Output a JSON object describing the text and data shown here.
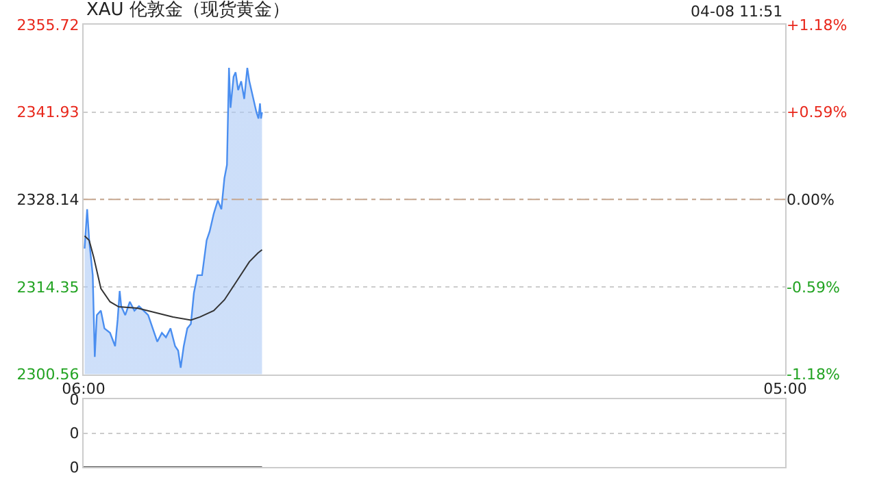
{
  "chart_data": [
    {
      "type": "area",
      "title": "XAU 伦敦金（现货黄金）",
      "annotations": [
        "04-08 11:51"
      ],
      "xlim": [
        "--04-08T06:00",
        "--04-09T05:00"
      ],
      "xticks": [
        {
          "value": "--04-08T06:00",
          "label": "06:00"
        },
        {
          "value": "--04-09T05:00",
          "label": "05:00"
        }
      ],
      "ylim": [
        2300.56,
        2355.72
      ],
      "yticks": [
        2300.56,
        2314.35,
        2328.14,
        2341.93,
        2355.72
      ],
      "y2lim": [
        -1.18,
        1.18
      ],
      "y2ticks": [
        {
          "value": -1.18,
          "label": "-1.18%"
        },
        {
          "value": -0.59,
          "label": "-0.59%"
        },
        {
          "value": 0,
          "label": "0.00%"
        },
        {
          "value": 0.59,
          "label": "+0.59%"
        },
        {
          "value": 1.18,
          "label": "+1.18%"
        }
      ],
      "grid": "y",
      "ref_lines": [
        {
          "axis": "y",
          "value": 2328.14,
          "color": "#c8a890",
          "line_style": "dashed"
        }
      ],
      "series": [
        {
          "type": "area",
          "color": "#4a8ef0",
          "x": [
            "--04-08T06:02",
            "--04-08T06:07",
            "--04-08T06:11",
            "--04-08T06:18",
            "--04-08T06:22",
            "--04-08T06:26",
            "--04-08T06:34",
            "--04-08T06:41",
            "--04-08T06:52",
            "--04-08T07:02",
            "--04-08T07:07",
            "--04-08T07:11",
            "--04-08T07:14",
            "--04-08T07:22",
            "--04-08T07:31",
            "--04-08T07:40",
            "--04-08T07:49",
            "--04-08T07:58",
            "--04-08T08:07",
            "--04-08T08:16",
            "--04-08T08:25",
            "--04-08T08:34",
            "--04-08T08:42",
            "--04-08T08:51",
            "--04-08T09:00",
            "--04-08T09:06",
            "--04-08T09:11",
            "--04-08T09:17",
            "--04-08T09:24",
            "--04-08T09:31",
            "--04-08T09:37",
            "--04-08T09:44",
            "--04-08T09:53",
            "--04-08T10:02",
            "--04-08T10:08",
            "--04-08T10:16",
            "--04-08T10:24",
            "--04-08T10:31",
            "--04-08T10:37",
            "--04-08T10:42",
            "--04-08T10:46",
            "--04-08T10:49",
            "--04-08T10:55",
            "--04-08T10:59",
            "--04-08T11:04",
            "--04-08T11:10",
            "--04-08T11:16",
            "--04-08T11:22",
            "--04-08T11:26",
            "--04-08T11:34",
            "--04-08T11:40",
            "--04-08T11:44",
            "--04-08T11:47",
            "--04-08T11:49",
            "--04-08T11:51"
          ],
          "values": [
            2320.4,
            2326.6,
            2321.7,
            2316.2,
            2303.3,
            2309.9,
            2310.6,
            2307.8,
            2307.1,
            2305.0,
            2309.2,
            2313.7,
            2311.3,
            2309.9,
            2312.0,
            2310.6,
            2311.3,
            2310.6,
            2309.9,
            2307.8,
            2305.7,
            2307.1,
            2306.4,
            2307.8,
            2305.0,
            2304.3,
            2301.6,
            2305.0,
            2307.8,
            2308.5,
            2313.4,
            2316.2,
            2316.2,
            2321.7,
            2323.1,
            2325.9,
            2328.0,
            2326.6,
            2331.5,
            2333.6,
            2348.9,
            2342.6,
            2347.5,
            2348.2,
            2345.4,
            2346.8,
            2344.0,
            2348.9,
            2346.8,
            2344.0,
            2341.9,
            2340.9,
            2343.3,
            2340.9,
            2341.9
          ]
        },
        {
          "type": "line",
          "color": "#333333",
          "x": [
            "--04-08T06:02",
            "--04-08T06:11",
            "--04-08T06:20",
            "--04-08T06:34",
            "--04-08T06:52",
            "--04-08T07:09",
            "--04-08T07:46",
            "--04-08T08:21",
            "--04-08T08:56",
            "--04-08T09:31",
            "--04-08T09:49",
            "--04-08T10:16",
            "--04-08T10:37",
            "--04-08T11:00",
            "--04-08T11:26",
            "--04-08T11:43",
            "--04-08T11:51"
          ],
          "values": [
            2322.4,
            2321.7,
            2319.0,
            2314.1,
            2312.0,
            2311.2,
            2311.0,
            2310.3,
            2309.6,
            2309.1,
            2309.6,
            2310.6,
            2312.3,
            2315.1,
            2318.3,
            2319.7,
            2320.2
          ]
        }
      ]
    },
    {
      "type": "line",
      "xlim": [
        "--04-08T06:00",
        "--04-09T05:00"
      ],
      "ylim": [
        0,
        0.004
      ],
      "yticks": [
        {
          "value": 0,
          "label": "0"
        },
        {
          "value": 0.002,
          "label": "0"
        },
        {
          "value": 0.004,
          "label": "0"
        }
      ],
      "tick_labels": "y",
      "grid": "y",
      "series": [
        {
          "color": "#555555",
          "x": [
            "--04-08T06:00",
            "--04-08T11:51"
          ],
          "values": [
            0,
            0
          ]
        }
      ]
    }
  ]
}
